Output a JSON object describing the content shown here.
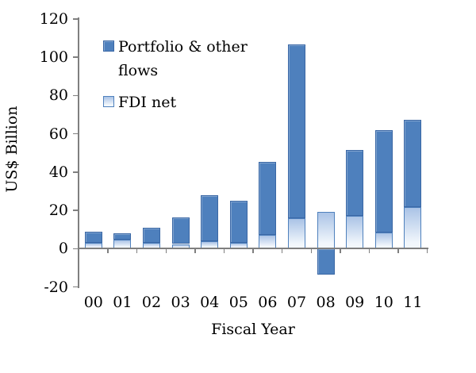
{
  "chart_data": {
    "type": "bar",
    "stacked": true,
    "title": "",
    "xlabel": "Fiscal Year",
    "ylabel": "US$ Billion",
    "categories": [
      "00",
      "01",
      "02",
      "03",
      "04",
      "05",
      "06",
      "07",
      "08",
      "09",
      "10",
      "11"
    ],
    "series": [
      {
        "name": "FDI net",
        "values": [
          3.2,
          4.6,
          3.2,
          2.4,
          3.7,
          3.0,
          7.2,
          15.9,
          19.3,
          17.0,
          8.5,
          21.5
        ]
      },
      {
        "name": "Portfolio & other flows",
        "values": [
          5.6,
          3.4,
          7.6,
          14.1,
          24.2,
          22.2,
          38.0,
          90.7,
          -13.5,
          34.6,
          53.3,
          45.9
        ]
      }
    ],
    "totals": [
      8.8,
      8.0,
      10.8,
      16.5,
      27.9,
      25.2,
      45.2,
      106.6,
      5.8,
      51.6,
      61.8,
      67.4
    ],
    "ylim": [
      -20,
      120
    ],
    "yticks": [
      -20,
      0,
      20,
      40,
      60,
      80,
      100,
      120
    ],
    "grid": false,
    "legend_position": "top-left-inside"
  },
  "legend": {
    "items": [
      {
        "label": "Portfolio & other flows",
        "swatch": "portfolio"
      },
      {
        "label": "FDI net",
        "swatch": "fdi"
      }
    ]
  },
  "colors": {
    "portfolio_fill": "#4e80bd",
    "portfolio_border": "#3a67a5",
    "fdi_border": "#4f81bd",
    "fdi_fill_top": "#aac3e6",
    "fdi_fill_bottom": "#f2f7fc",
    "axis": "#7f7f7f",
    "text": "#000000"
  }
}
